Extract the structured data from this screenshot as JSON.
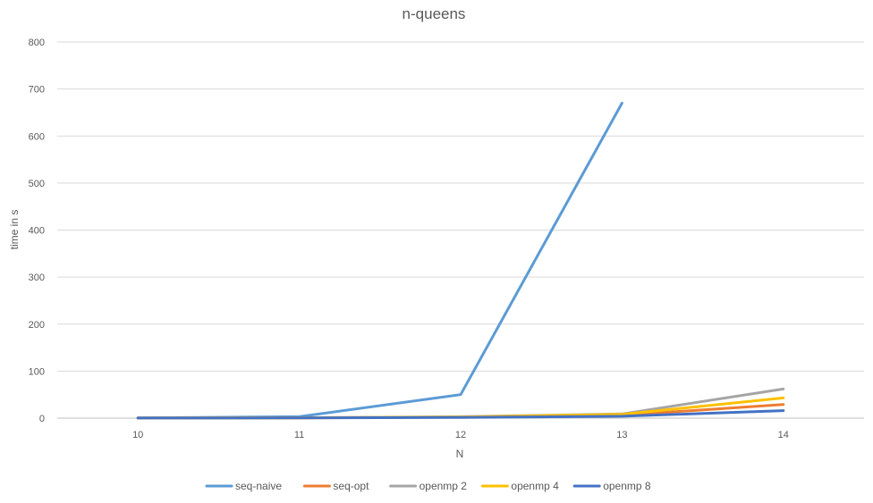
{
  "chart_data": {
    "type": "line",
    "title": "n-queens",
    "xlabel": "N",
    "ylabel": "time in s",
    "categories": [
      "10",
      "11",
      "12",
      "13",
      "14"
    ],
    "ylim": [
      0,
      800
    ],
    "yticks": [
      0,
      100,
      200,
      300,
      400,
      500,
      600,
      700,
      800
    ],
    "grid": true,
    "legend_position": "bottom",
    "series": [
      {
        "name": "seq-naive",
        "color": "#5B9BD5",
        "values": [
          0.3,
          3,
          50,
          670,
          null
        ]
      },
      {
        "name": "seq-opt",
        "color": "#ED7D31",
        "values": [
          0.1,
          0.5,
          2,
          6,
          29
        ]
      },
      {
        "name": "openmp 2",
        "color": "#A5A5A5",
        "values": [
          0.1,
          0.8,
          3,
          9,
          62
        ]
      },
      {
        "name": "openmp 4",
        "color": "#FFC000",
        "values": [
          0.1,
          0.6,
          2.5,
          8,
          43
        ]
      },
      {
        "name": "openmp 8",
        "color": "#4472C4",
        "values": [
          0.1,
          0.4,
          1.5,
          4,
          16
        ]
      }
    ]
  }
}
